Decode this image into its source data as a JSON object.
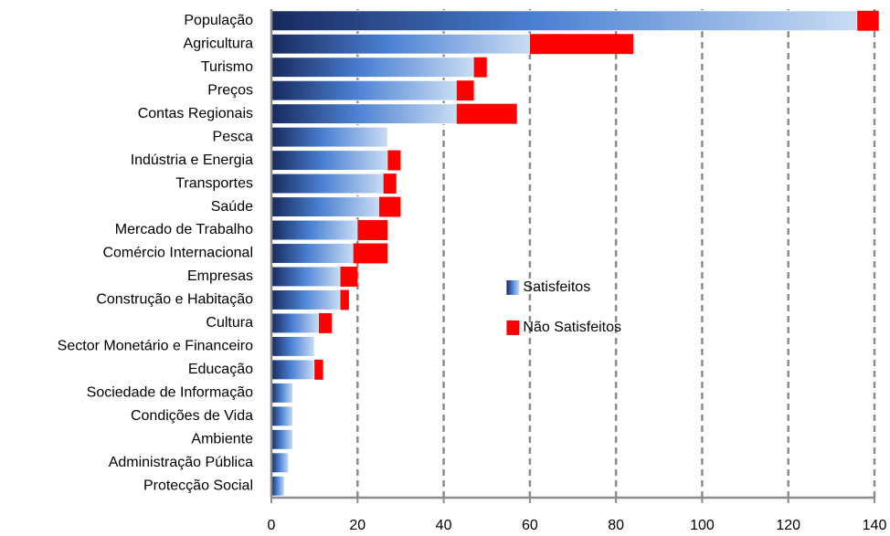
{
  "chart_data": {
    "type": "bar",
    "orientation": "horizontal",
    "stacked": true,
    "categories": [
      "População",
      "Agricultura",
      "Turismo",
      "Preços",
      "Contas Regionais",
      "Pesca",
      "Indústria e Energia",
      "Transportes",
      "Saúde",
      "Mercado de Trabalho",
      "Comércio Internacional",
      "Empresas",
      "Construção e Habitação",
      "Cultura",
      "Sector Monetário e Financeiro",
      "Educação",
      "Sociedade de Informação",
      "Condições de Vida",
      "Ambiente",
      "Administração Pública",
      "Protecção Social"
    ],
    "series": [
      {
        "name": "Satisfeitos",
        "color": "#4f81bd",
        "values": [
          136,
          60,
          47,
          43,
          43,
          27,
          27,
          26,
          25,
          20,
          19,
          16,
          16,
          11,
          10,
          10,
          5,
          5,
          5,
          4,
          3
        ]
      },
      {
        "name": "Não Satisfeitos",
        "color": "#ff0000",
        "values": [
          5,
          24,
          3,
          4,
          14,
          0,
          3,
          3,
          5,
          7,
          8,
          4,
          2,
          3,
          0,
          2,
          0,
          0,
          0,
          0,
          0
        ]
      }
    ],
    "xlim": [
      0,
      140
    ],
    "xticks": [
      0,
      20,
      40,
      60,
      80,
      100,
      120,
      140
    ],
    "grid": true,
    "legend": "center"
  }
}
